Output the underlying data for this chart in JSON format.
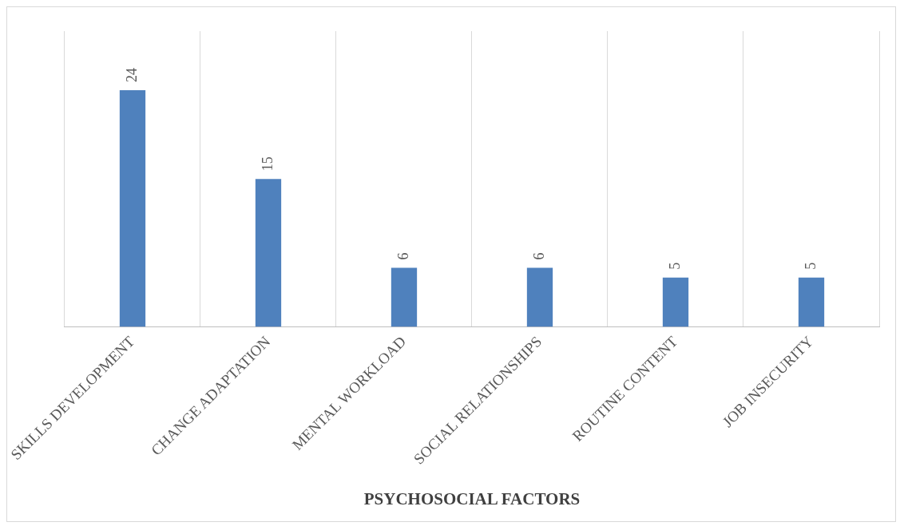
{
  "chart_data": {
    "type": "bar",
    "xlabel": "PSYCHOSOCIAL FACTORS",
    "categories": [
      "SKILLS DEVELOPMENT",
      "CHANGE ADAPTATION",
      "MENTAL WORKLOAD",
      "SOCIAL RELATIONSHIPS",
      "ROUTINE CONTENT",
      "JOB INSECURITY"
    ],
    "values": [
      24,
      15,
      6,
      6,
      5,
      5
    ],
    "color": "#4f81bd",
    "data_labels": true,
    "grid": "x",
    "legend": false,
    "tick_labels": "x"
  }
}
